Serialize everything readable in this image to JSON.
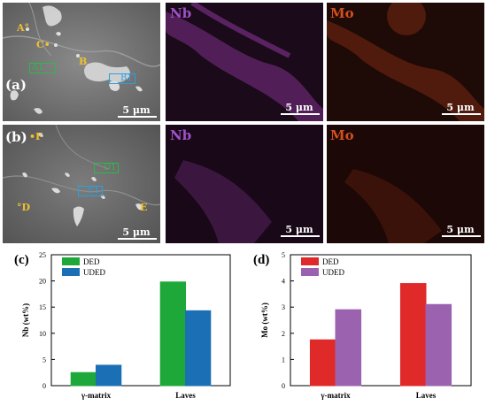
{
  "panels": {
    "a": {
      "label": "(a)",
      "sem_markers": [
        "A",
        "C",
        "B",
        "A1",
        "B1"
      ],
      "maps": [
        {
          "element": "Nb",
          "color": "#a050c8"
        },
        {
          "element": "Mo",
          "color": "#d2501e"
        }
      ],
      "scale": "5 μm"
    },
    "b": {
      "label": "(b)",
      "sem_markers": [
        "F",
        "D1",
        "E1",
        "D",
        "E"
      ],
      "maps": [
        {
          "element": "Nb",
          "color": "#a050c8"
        },
        {
          "element": "Mo",
          "color": "#d2501e"
        }
      ],
      "scale": "5 μm"
    }
  },
  "marker_color_label": "#f0c030",
  "marker_color_box_green": "#2fb84a",
  "marker_color_box_blue": "#2aa0e0",
  "chart_data": [
    {
      "panel": "(c)",
      "type": "bar",
      "categories": [
        "γ-matrix",
        "Laves"
      ],
      "ylabel": "Nb (wt%)",
      "ylim": [
        0,
        25
      ],
      "yticks": [
        0,
        5,
        10,
        15,
        20,
        25
      ],
      "series": [
        {
          "name": "DED",
          "color": "#1fa83a",
          "values": [
            2.5,
            19.8
          ]
        },
        {
          "name": "UDED",
          "color": "#1b6fb5",
          "values": [
            3.9,
            14.3
          ]
        }
      ],
      "legend": "top-left"
    },
    {
      "panel": "(d)",
      "type": "bar",
      "categories": [
        "γ-matrix",
        "Laves"
      ],
      "ylabel": "Mo (wt%)",
      "ylim": [
        0,
        5
      ],
      "yticks": [
        0,
        1,
        2,
        3,
        4,
        5
      ],
      "series": [
        {
          "name": "DED",
          "color": "#e02a2a",
          "values": [
            1.75,
            3.9
          ]
        },
        {
          "name": "UDED",
          "color": "#9b62b0",
          "values": [
            2.9,
            3.1
          ]
        }
      ],
      "legend": "top-left"
    }
  ]
}
